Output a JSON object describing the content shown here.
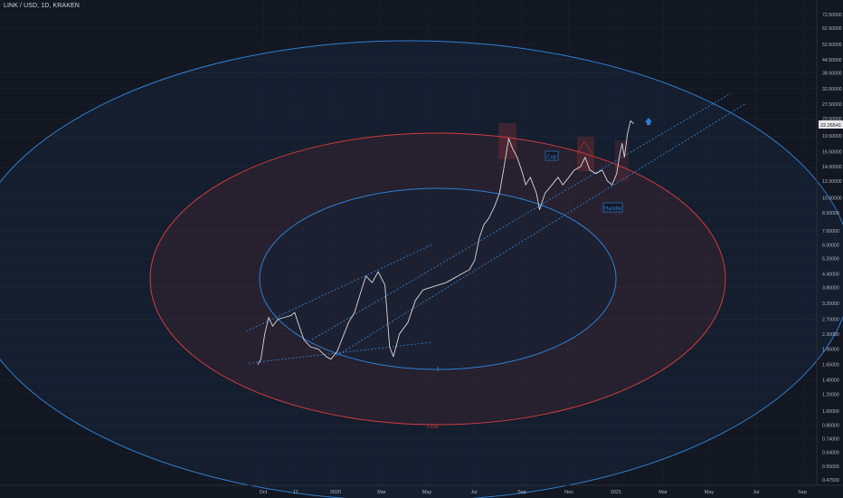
{
  "header": {
    "symbol": "LINK / USD, 1D, KRAKEN"
  },
  "colors": {
    "background": "#131722",
    "grid": "#1f2430",
    "price_line": "#d7d9df",
    "blue": "#2f7fd0",
    "red": "#d23c3c",
    "axis_text": "#b2b5be"
  },
  "chart_data": {
    "type": "line",
    "title": "LINK / USD, 1D, KRAKEN",
    "xlabel": "",
    "ylabel": "",
    "log_scale": true,
    "grid": true,
    "x_tick_labels": [
      "Oct",
      "11",
      "2020",
      "Mar",
      "May",
      "Jul",
      "Sep",
      "Nov",
      "2021",
      "Mar",
      "May",
      "Jul",
      "Sep"
    ],
    "y_tick_labels": [
      "72.50000",
      "62.50000",
      "52.50000",
      "44.50000",
      "38.50000",
      "32.50000",
      "27.50000",
      "23.50000",
      "19.50000",
      "16.50000",
      "14.00000",
      "12.00000",
      "10.00000",
      "8.50000",
      "7.00000",
      "6.00000",
      "5.20000",
      "4.40000",
      "3.80000",
      "3.20000",
      "2.70000",
      "2.30000",
      "1.95000",
      "1.65000",
      "1.40000",
      "1.20000",
      "1.00000",
      "0.86000",
      "0.74000",
      "0.64000",
      "0.55000",
      "0.47500"
    ],
    "last_price_label": "22.26541",
    "series": [
      {
        "values": [
          {
            "x": "2019-09-24",
            "y": 1.65
          },
          {
            "x": "2019-09-28",
            "y": 1.75
          },
          {
            "x": "2019-10-03",
            "y": 2.3
          },
          {
            "x": "2019-10-08",
            "y": 2.75
          },
          {
            "x": "2019-10-13",
            "y": 2.5
          },
          {
            "x": "2019-10-20",
            "y": 2.7
          },
          {
            "x": "2019-10-28",
            "y": 2.75
          },
          {
            "x": "2019-11-05",
            "y": 2.8
          },
          {
            "x": "2019-11-10",
            "y": 2.9
          },
          {
            "x": "2019-11-15",
            "y": 2.55
          },
          {
            "x": "2019-11-22",
            "y": 2.15
          },
          {
            "x": "2019-11-30",
            "y": 2.0
          },
          {
            "x": "2019-12-10",
            "y": 1.95
          },
          {
            "x": "2019-12-20",
            "y": 1.8
          },
          {
            "x": "2019-12-26",
            "y": 1.75
          },
          {
            "x": "2020-01-03",
            "y": 1.9
          },
          {
            "x": "2020-01-10",
            "y": 2.2
          },
          {
            "x": "2020-01-18",
            "y": 2.6
          },
          {
            "x": "2020-01-26",
            "y": 2.9
          },
          {
            "x": "2020-02-02",
            "y": 3.5
          },
          {
            "x": "2020-02-10",
            "y": 4.3
          },
          {
            "x": "2020-02-18",
            "y": 4.0
          },
          {
            "x": "2020-02-26",
            "y": 4.5
          },
          {
            "x": "2020-03-06",
            "y": 3.9
          },
          {
            "x": "2020-03-12",
            "y": 2.0
          },
          {
            "x": "2020-03-17",
            "y": 1.8
          },
          {
            "x": "2020-03-25",
            "y": 2.3
          },
          {
            "x": "2020-04-05",
            "y": 2.6
          },
          {
            "x": "2020-04-15",
            "y": 3.3
          },
          {
            "x": "2020-04-25",
            "y": 3.7
          },
          {
            "x": "2020-05-05",
            "y": 3.8
          },
          {
            "x": "2020-05-15",
            "y": 3.9
          },
          {
            "x": "2020-05-25",
            "y": 4.0
          },
          {
            "x": "2020-06-05",
            "y": 4.2
          },
          {
            "x": "2020-06-15",
            "y": 4.4
          },
          {
            "x": "2020-06-25",
            "y": 4.6
          },
          {
            "x": "2020-07-02",
            "y": 5.1
          },
          {
            "x": "2020-07-08",
            "y": 6.5
          },
          {
            "x": "2020-07-14",
            "y": 7.5
          },
          {
            "x": "2020-07-20",
            "y": 8.0
          },
          {
            "x": "2020-07-27",
            "y": 9.0
          },
          {
            "x": "2020-08-03",
            "y": 10.5
          },
          {
            "x": "2020-08-09",
            "y": 14.0
          },
          {
            "x": "2020-08-15",
            "y": 19.0
          },
          {
            "x": "2020-08-20",
            "y": 17.0
          },
          {
            "x": "2020-08-26",
            "y": 15.5
          },
          {
            "x": "2020-09-02",
            "y": 13.0
          },
          {
            "x": "2020-09-06",
            "y": 11.5
          },
          {
            "x": "2020-09-12",
            "y": 12.5
          },
          {
            "x": "2020-09-20",
            "y": 10.5
          },
          {
            "x": "2020-09-24",
            "y": 8.8
          },
          {
            "x": "2020-10-01",
            "y": 10.5
          },
          {
            "x": "2020-10-10",
            "y": 11.5
          },
          {
            "x": "2020-10-18",
            "y": 12.5
          },
          {
            "x": "2020-10-24",
            "y": 11.5
          },
          {
            "x": "2020-11-01",
            "y": 12.5
          },
          {
            "x": "2020-11-08",
            "y": 13.5
          },
          {
            "x": "2020-11-16",
            "y": 14.0
          },
          {
            "x": "2020-11-22",
            "y": 15.5
          },
          {
            "x": "2020-11-28",
            "y": 13.5
          },
          {
            "x": "2020-12-06",
            "y": 13.0
          },
          {
            "x": "2020-12-14",
            "y": 13.5
          },
          {
            "x": "2020-12-21",
            "y": 12.0
          },
          {
            "x": "2020-12-27",
            "y": 11.5
          },
          {
            "x": "2021-01-02",
            "y": 13.0
          },
          {
            "x": "2021-01-06",
            "y": 16.0
          },
          {
            "x": "2021-01-09",
            "y": 18.0
          },
          {
            "x": "2021-01-12",
            "y": 15.5
          },
          {
            "x": "2021-01-16",
            "y": 20.0
          },
          {
            "x": "2021-01-20",
            "y": 23.0
          },
          {
            "x": "2021-01-24",
            "y": 22.3
          }
        ]
      }
    ],
    "annotations": [
      {
        "text": "Cup",
        "color": "#2f7fd0"
      },
      {
        "text": "Handle",
        "color": "#2f7fd0"
      },
      {
        "text": "1.618",
        "color": "#d23c3c"
      }
    ]
  }
}
